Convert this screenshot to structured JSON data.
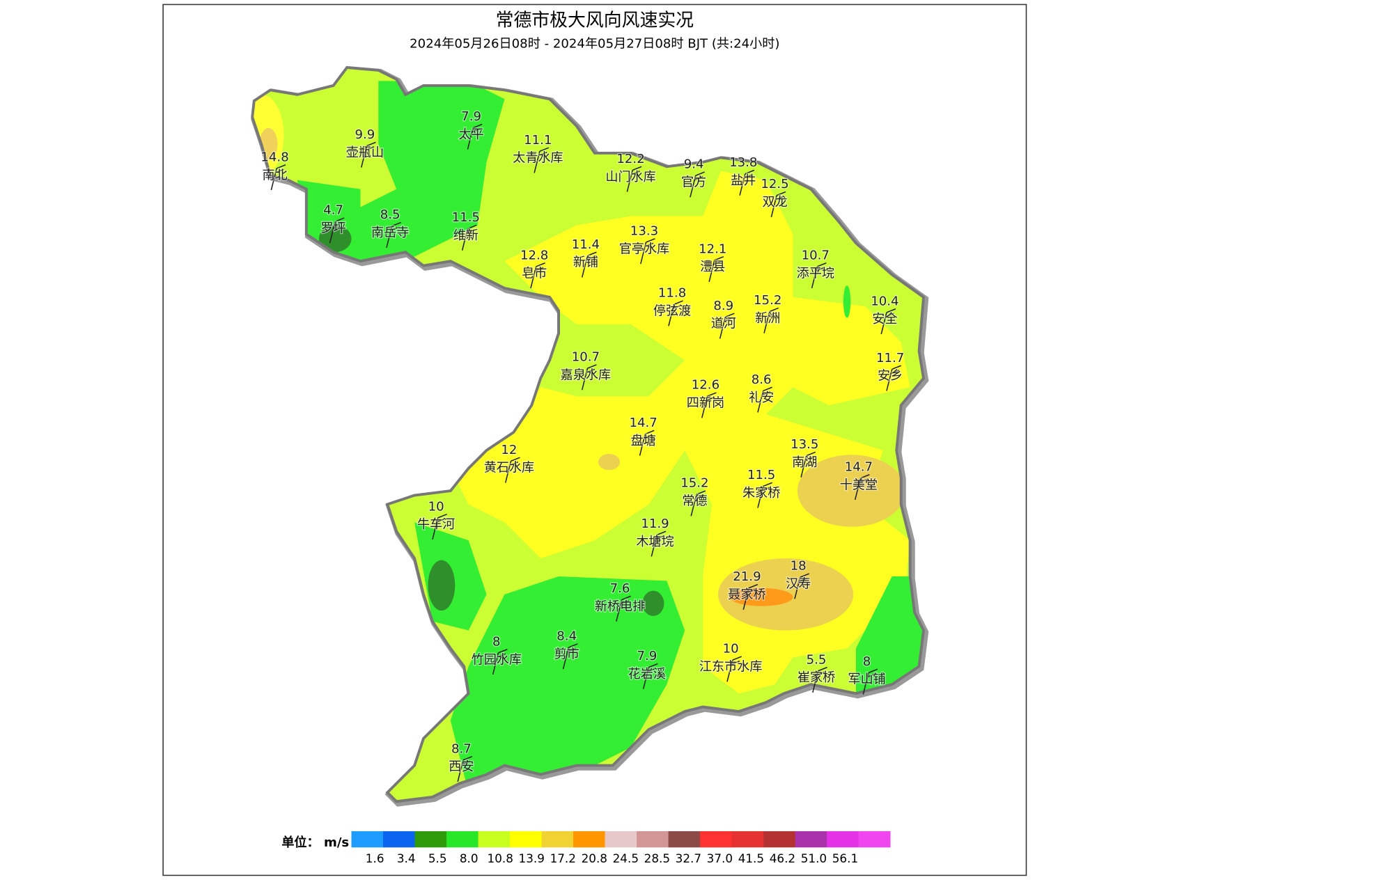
{
  "title": "常德市极大风向风速实况",
  "subtitle": "2024年05月26日08时 - 2024年05月27日08时 BJT (共:24小时)",
  "stations": [
    {
      "name": "南北",
      "value": 14.8
    },
    {
      "name": "壶瓶山",
      "value": 9.9
    },
    {
      "name": "太平",
      "value": 7.9
    },
    {
      "name": "太青水库",
      "value": 11.1
    },
    {
      "name": "山门水库",
      "value": 12.2
    },
    {
      "name": "官方",
      "value": 9.4
    },
    {
      "name": "盐井",
      "value": 13.8
    },
    {
      "name": "双龙",
      "value": 12.5
    },
    {
      "name": "罗坪",
      "value": 4.7
    },
    {
      "name": "南岳寺",
      "value": 8.5
    },
    {
      "name": "维新",
      "value": 11.5
    },
    {
      "name": "皂市",
      "value": 12.8
    },
    {
      "name": "新铺",
      "value": 11.4
    },
    {
      "name": "官亭水库",
      "value": 13.3
    },
    {
      "name": "澧县",
      "value": 12.1
    },
    {
      "name": "添平垸",
      "value": 10.7
    },
    {
      "name": "停弦渡",
      "value": 11.8
    },
    {
      "name": "道河",
      "value": 8.9
    },
    {
      "name": "新洲",
      "value": 15.2
    },
    {
      "name": "安全",
      "value": 10.4
    },
    {
      "name": "嘉泉水库",
      "value": 10.7
    },
    {
      "name": "安乡",
      "value": 11.7
    },
    {
      "name": "四新岗",
      "value": 12.6
    },
    {
      "name": "礼安",
      "value": 8.6
    },
    {
      "name": "盘塘",
      "value": 14.7
    },
    {
      "name": "南湖",
      "value": 13.5
    },
    {
      "name": "黄石水库",
      "value": 12
    },
    {
      "name": "十美堂",
      "value": 14.7
    },
    {
      "name": "朱家桥",
      "value": 11.5
    },
    {
      "name": "常德",
      "value": 15.2
    },
    {
      "name": "牛车河",
      "value": 10
    },
    {
      "name": "木塘垸",
      "value": 11.9
    },
    {
      "name": "汉寿",
      "value": 18
    },
    {
      "name": "聂家桥",
      "value": 21.9
    },
    {
      "name": "新桥电排",
      "value": 7.6
    },
    {
      "name": "竹园水库",
      "value": 8
    },
    {
      "name": "剪市",
      "value": 8.4
    },
    {
      "name": "花岩溪",
      "value": 7.9
    },
    {
      "name": "江东市水库",
      "value": 10
    },
    {
      "name": "崔家桥",
      "value": 5.5
    },
    {
      "name": "军山铺",
      "value": 8
    },
    {
      "name": "西安",
      "value": 8.7
    }
  ],
  "legend": {
    "unit_label": "单位： m/s",
    "colors": [
      "#1e9bff",
      "#0a64f0",
      "#2f9b0a",
      "#28e628",
      "#c8ff1e",
      "#ffff00",
      "#f0d232",
      "#ff9600",
      "#e6c8c8",
      "#d29696",
      "#8c4b46",
      "#ff3232",
      "#e63232",
      "#b43232",
      "#aa32aa",
      "#e632e6",
      "#f046f0"
    ],
    "ticks": [
      1.6,
      3.4,
      5.5,
      {
        "value": 8,
        "label": "8.0"
      },
      10.8,
      13.9,
      17.2,
      20.8,
      24.5,
      28.5,
      32.7,
      {
        "value": 37,
        "label": "37.0"
      },
      41.5,
      46.2,
      {
        "value": 51,
        "label": "51.0"
      },
      56.1
    ]
  }
}
